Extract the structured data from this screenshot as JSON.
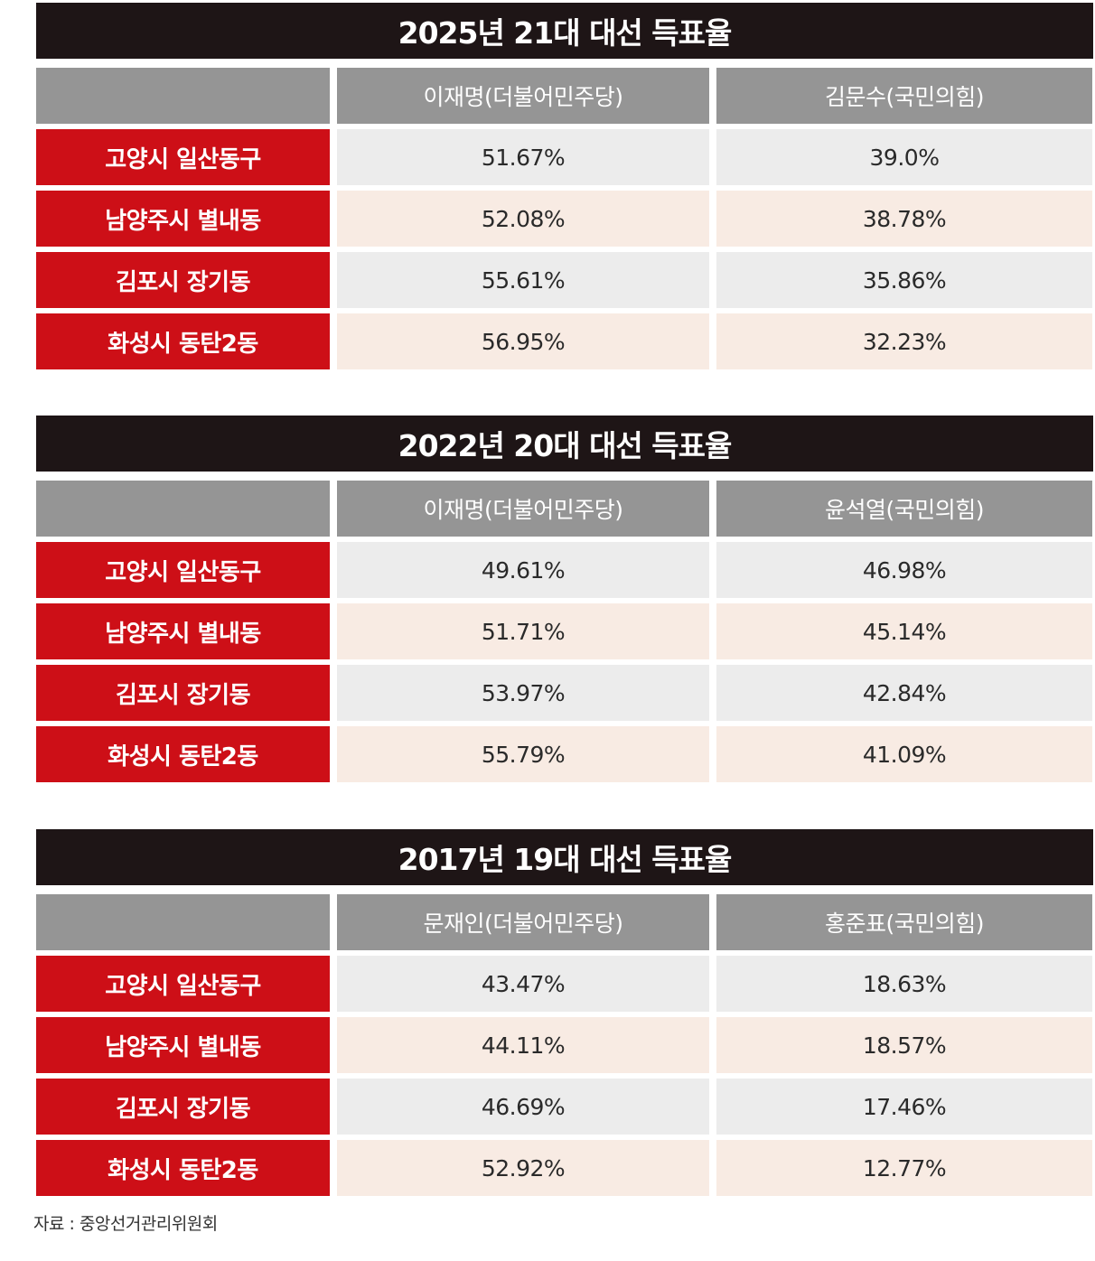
{
  "chart_data": [
    {
      "type": "table",
      "title": "2025년 21대 대선 득표율",
      "columns": [
        "이재명(더불어민주당)",
        "김문수(국민의힘)"
      ],
      "rows": [
        {
          "region": "고양시 일산동구",
          "values": [
            "51.67%",
            "39.0%"
          ]
        },
        {
          "region": "남양주시 별내동",
          "values": [
            "52.08%",
            "38.78%"
          ]
        },
        {
          "region": "김포시 장기동",
          "values": [
            "55.61%",
            "35.86%"
          ]
        },
        {
          "region": "화성시 동탄2동",
          "values": [
            "56.95%",
            "32.23%"
          ]
        }
      ]
    },
    {
      "type": "table",
      "title": "2022년 20대 대선 득표율",
      "columns": [
        "이재명(더불어민주당)",
        "윤석열(국민의힘)"
      ],
      "rows": [
        {
          "region": "고양시 일산동구",
          "values": [
            "49.61%",
            "46.98%"
          ]
        },
        {
          "region": "남양주시 별내동",
          "values": [
            "51.71%",
            "45.14%"
          ]
        },
        {
          "region": "김포시 장기동",
          "values": [
            "53.97%",
            "42.84%"
          ]
        },
        {
          "region": "화성시 동탄2동",
          "values": [
            "55.79%",
            "41.09%"
          ]
        }
      ]
    },
    {
      "type": "table",
      "title": "2017년 19대 대선 득표율",
      "columns": [
        "문재인(더불어민주당)",
        "홍준표(국민의힘)"
      ],
      "rows": [
        {
          "region": "고양시 일산동구",
          "values": [
            "43.47%",
            "18.63%"
          ]
        },
        {
          "region": "남양주시 별내동",
          "values": [
            "44.11%",
            "18.57%"
          ]
        },
        {
          "region": "김포시 장기동",
          "values": [
            "46.69%",
            "17.46%"
          ]
        },
        {
          "region": "화성시 동탄2동",
          "values": [
            "52.92%",
            "12.77%"
          ]
        }
      ]
    }
  ],
  "source": "자료 : 중앙선거관리위원회",
  "colors": {
    "title_bar": "#1e1516",
    "header": "#959595",
    "region": "#cd0f17",
    "row_gray": "#ececec",
    "row_peach": "#f8ebe3"
  }
}
